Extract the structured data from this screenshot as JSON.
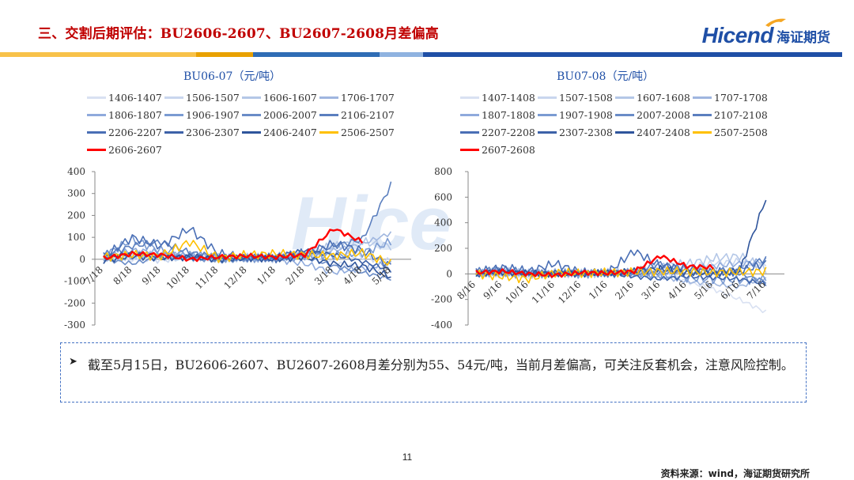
{
  "header": {
    "title": "三、交割后期评估：BU2606-2607、BU2607-2608月差偏高",
    "logo_en": "Hicend",
    "logo_cn": "海证期货",
    "brand_color": "#1f4fa6",
    "title_color": "#c00000"
  },
  "watermark": {
    "text": "Hice"
  },
  "note": {
    "bullet_icon": "arrow-bullet-icon",
    "text": "截至5月15日，BU2606-2607、BU2607-2608月差分别为55、54元/吨，当前月差偏高，可关注反套机会，注意风险控制。"
  },
  "footer": {
    "page_number": "11",
    "source": "资料来源：wind，海证期货研究所"
  },
  "chart_data": [
    {
      "type": "line",
      "title": "BU06-07（元/吨）",
      "ylim": [
        -300,
        400
      ],
      "yticks": [
        "400",
        "300",
        "200",
        "100",
        "0",
        "-100",
        "-200",
        "-300"
      ],
      "categories": [
        "7/18",
        "8/18",
        "9/18",
        "10/18",
        "11/18",
        "12/18",
        "1/18",
        "2/18",
        "3/18",
        "4/18",
        "5/18"
      ],
      "legend_position": "top",
      "series": [
        {
          "name": "1406-1407",
          "color": "#d9e1f2",
          "values": [
            10,
            -5,
            12,
            8,
            -6,
            4,
            10,
            20,
            -15,
            -40,
            -60
          ]
        },
        {
          "name": "1506-1507",
          "color": "#c9d6ee",
          "values": [
            5,
            12,
            -4,
            6,
            10,
            -3,
            6,
            12,
            25,
            10,
            -10
          ]
        },
        {
          "name": "1606-1607",
          "color": "#b4c7e7",
          "values": [
            0,
            20,
            15,
            10,
            5,
            8,
            5,
            30,
            60,
            80,
            60
          ]
        },
        {
          "name": "1706-1707",
          "color": "#9fb6df",
          "values": [
            -10,
            8,
            20,
            5,
            0,
            6,
            12,
            20,
            40,
            70,
            120
          ]
        },
        {
          "name": "1806-1807",
          "color": "#8faadc",
          "values": [
            8,
            40,
            30,
            15,
            10,
            2,
            0,
            -20,
            -60,
            -40,
            -20
          ]
        },
        {
          "name": "1906-1907",
          "color": "#7b9bd2",
          "values": [
            15,
            90,
            40,
            20,
            6,
            5,
            10,
            15,
            20,
            30,
            80
          ]
        },
        {
          "name": "2006-2007",
          "color": "#6a8cc7",
          "values": [
            0,
            -20,
            10,
            5,
            -8,
            0,
            8,
            10,
            -30,
            -60,
            -90
          ]
        },
        {
          "name": "2106-2107",
          "color": "#5b7fbf",
          "values": [
            20,
            60,
            80,
            30,
            10,
            8,
            5,
            20,
            60,
            90,
            340
          ]
        },
        {
          "name": "2206-2207",
          "color": "#4a6fb5",
          "values": [
            10,
            100,
            60,
            140,
            25,
            10,
            5,
            30,
            70,
            40,
            -30
          ]
        },
        {
          "name": "2306-2307",
          "color": "#3d62a8",
          "values": [
            5,
            30,
            10,
            15,
            5,
            10,
            15,
            40,
            20,
            -10,
            -50
          ]
        },
        {
          "name": "2406-2407",
          "color": "#2f559c",
          "values": [
            -5,
            15,
            5,
            10,
            0,
            5,
            0,
            10,
            -20,
            -30,
            -80
          ]
        },
        {
          "name": "2506-2507",
          "color": "#ffc000",
          "values": [
            10,
            20,
            15,
            80,
            5,
            20,
            25,
            20,
            15,
            30,
            -20
          ]
        },
        {
          "name": "2606-2607",
          "color": "#ff0000",
          "values": [
            5,
            25,
            20,
            0,
            10,
            15,
            10,
            20,
            140,
            80,
            null
          ]
        }
      ]
    },
    {
      "type": "line",
      "title": "BU07-08（元/吨）",
      "ylim": [
        -400,
        800
      ],
      "yticks": [
        "800",
        "600",
        "400",
        "200",
        "0",
        "-200",
        "-400"
      ],
      "categories": [
        "8/16",
        "9/16",
        "10/16",
        "11/16",
        "12/16",
        "1/16",
        "2/16",
        "3/16",
        "4/16",
        "5/16",
        "6/16",
        "7/16"
      ],
      "legend_position": "top",
      "series": [
        {
          "name": "1407-1408",
          "color": "#d9e1f2",
          "values": [
            0,
            10,
            -20,
            5,
            0,
            10,
            -10,
            20,
            -60,
            -120,
            -200,
            -300
          ]
        },
        {
          "name": "1507-1508",
          "color": "#c9d6ee",
          "values": [
            10,
            -10,
            20,
            0,
            5,
            0,
            10,
            30,
            50,
            80,
            100,
            60
          ]
        },
        {
          "name": "1607-1608",
          "color": "#b4c7e7",
          "values": [
            -5,
            20,
            0,
            10,
            0,
            10,
            15,
            60,
            80,
            120,
            140,
            40
          ]
        },
        {
          "name": "1707-1708",
          "color": "#9fb6df",
          "values": [
            5,
            0,
            10,
            5,
            0,
            5,
            0,
            -20,
            -60,
            -80,
            -100,
            -30
          ]
        },
        {
          "name": "1807-1808",
          "color": "#8faadc",
          "values": [
            0,
            15,
            5,
            0,
            5,
            0,
            10,
            20,
            40,
            60,
            80,
            100
          ]
        },
        {
          "name": "1907-1908",
          "color": "#7b9bd2",
          "values": [
            15,
            10,
            -5,
            5,
            0,
            5,
            10,
            -10,
            -30,
            -40,
            -50,
            -40
          ]
        },
        {
          "name": "2007-2008",
          "color": "#6a8cc7",
          "values": [
            0,
            5,
            10,
            0,
            10,
            5,
            0,
            10,
            20,
            10,
            0,
            -60
          ]
        },
        {
          "name": "2107-2108",
          "color": "#5b7fbf",
          "values": [
            20,
            40,
            10,
            0,
            5,
            5,
            15,
            80,
            30,
            20,
            40,
            120
          ]
        },
        {
          "name": "2207-2208",
          "color": "#4a6fb5",
          "values": [
            10,
            50,
            20,
            80,
            10,
            10,
            180,
            60,
            40,
            10,
            20,
            80
          ]
        },
        {
          "name": "2307-2308",
          "color": "#3d62a8",
          "values": [
            -10,
            20,
            0,
            10,
            5,
            0,
            -20,
            -40,
            -20,
            -30,
            -40,
            -80
          ]
        },
        {
          "name": "2407-2408",
          "color": "#2f559c",
          "values": [
            5,
            10,
            5,
            0,
            0,
            10,
            20,
            40,
            10,
            0,
            20,
            590
          ]
        },
        {
          "name": "2507-2508",
          "color": "#ffc000",
          "values": [
            0,
            -20,
            -40,
            10,
            5,
            10,
            15,
            20,
            20,
            10,
            15,
            20
          ]
        },
        {
          "name": "2607-2608",
          "color": "#ff0000",
          "values": [
            10,
            20,
            0,
            -10,
            10,
            5,
            20,
            140,
            60,
            50,
            null,
            null
          ]
        }
      ]
    }
  ]
}
